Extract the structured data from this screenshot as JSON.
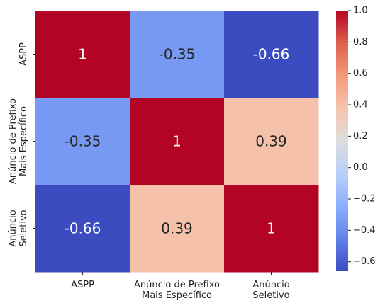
{
  "chart_data": {
    "type": "heatmap",
    "title": "",
    "xlabel": "",
    "ylabel": "",
    "x_tick_labels": [
      [
        "ASPP"
      ],
      [
        "Anúncio de Prefixo",
        "Mais Específico"
      ],
      [
        "Anúncio",
        "Seletivo"
      ]
    ],
    "y_tick_labels": [
      [
        "ASPP"
      ],
      [
        "Anúncio de Prefixo",
        "Mais Específico"
      ],
      [
        "Anúncio",
        "Seletivo"
      ]
    ],
    "matrix": [
      [
        1,
        -0.35,
        -0.66
      ],
      [
        -0.35,
        1,
        0.39
      ],
      [
        -0.66,
        0.39,
        1
      ]
    ],
    "cell_text": [
      [
        "1",
        "-0.35",
        "-0.66"
      ],
      [
        "-0.35",
        "1",
        "0.39"
      ],
      [
        "-0.66",
        "0.39",
        "1"
      ]
    ],
    "colormap": "coolwarm",
    "colorbar_range": [
      -0.66,
      1.0
    ],
    "colorbar_ticks": [
      "1.0",
      "0.8",
      "0.6",
      "0.4",
      "0.2",
      "0.0",
      "−0.2",
      "−0.4",
      "−0.6"
    ],
    "colorbar_tick_values": [
      1.0,
      0.8,
      0.6,
      0.4,
      0.2,
      0.0,
      -0.2,
      -0.4,
      -0.6
    ]
  }
}
